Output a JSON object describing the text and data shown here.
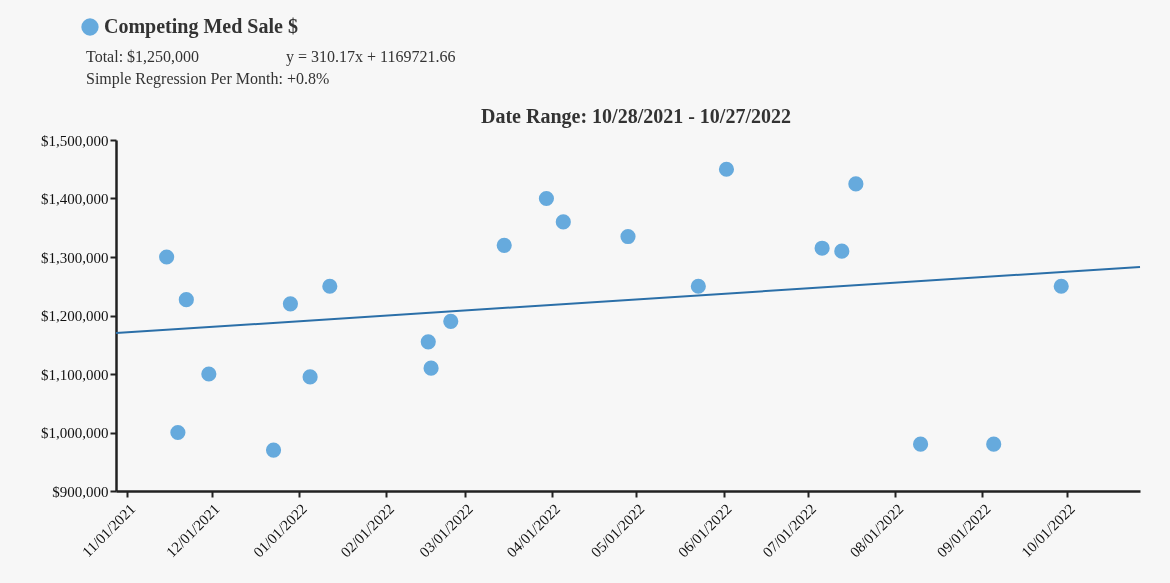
{
  "chart_data": {
    "type": "scatter",
    "title": "Date Range: 10/28/2021 - 10/27/2022",
    "annotations": [
      "Total: $1,250,000",
      "y = 310.17x + 1169721.66",
      "Simple Regression Per Month: +0.8%"
    ],
    "series": [
      {
        "name": "Competing Med Sale $",
        "marker": "circle",
        "color": "#66aadd",
        "x": [
          "2021-11-15",
          "2021-11-19",
          "2021-11-22",
          "2021-11-30",
          "2021-12-23",
          "2021-12-29",
          "2022-01-05",
          "2022-01-12",
          "2022-02-16",
          "2022-02-17",
          "2022-02-24",
          "2022-03-15",
          "2022-03-30",
          "2022-04-05",
          "2022-04-28",
          "2022-05-23",
          "2022-06-02",
          "2022-07-06",
          "2022-07-13",
          "2022-07-18",
          "2022-08-10",
          "2022-09-05",
          "2022-09-29"
        ],
        "values": [
          1300000,
          1000000,
          1227000,
          1100000,
          970000,
          1220000,
          1095000,
          1250000,
          1155000,
          1110000,
          1190000,
          1320000,
          1400000,
          1360000,
          1335000,
          1250000,
          1450000,
          1315000,
          1310000,
          1425000,
          980000,
          980000,
          1250000
        ]
      },
      {
        "type": "line",
        "marker": "none",
        "color": "#2b6fa8",
        "x": [
          "2021-10-28",
          "2022-10-27"
        ],
        "values": [
          1170000,
          1283000
        ]
      }
    ],
    "xlim": [
      "2021-10-28",
      "2022-10-27"
    ],
    "xticks": [
      {
        "value": "2021-11-01",
        "label": "11/01/2021"
      },
      {
        "value": "2021-12-01",
        "label": "12/01/2021"
      },
      {
        "value": "2022-01-01",
        "label": "01/01/2022"
      },
      {
        "value": "2022-02-01",
        "label": "02/01/2022"
      },
      {
        "value": "2022-03-01",
        "label": "03/01/2022"
      },
      {
        "value": "2022-04-01",
        "label": "04/01/2022"
      },
      {
        "value": "2022-05-01",
        "label": "05/01/2022"
      },
      {
        "value": "2022-06-01",
        "label": "06/01/2022"
      },
      {
        "value": "2022-07-01",
        "label": "07/01/2022"
      },
      {
        "value": "2022-08-01",
        "label": "08/01/2022"
      },
      {
        "value": "2022-09-01",
        "label": "09/01/2022"
      },
      {
        "value": "2022-10-01",
        "label": "10/01/2022"
      }
    ],
    "ylim": [
      900000,
      1500000
    ],
    "yticks": [
      {
        "value": 900000,
        "label": "$900,000"
      },
      {
        "value": 1000000,
        "label": "$1,000,000"
      },
      {
        "value": 1100000,
        "label": "$1,100,000"
      },
      {
        "value": 1200000,
        "label": "$1,200,000"
      },
      {
        "value": 1300000,
        "label": "$1,300,000"
      },
      {
        "value": 1400000,
        "label": "$1,400,000"
      },
      {
        "value": 1500000,
        "label": "$1,500,000"
      }
    ],
    "grid": false,
    "legend": "top left",
    "line_style": "solid"
  }
}
